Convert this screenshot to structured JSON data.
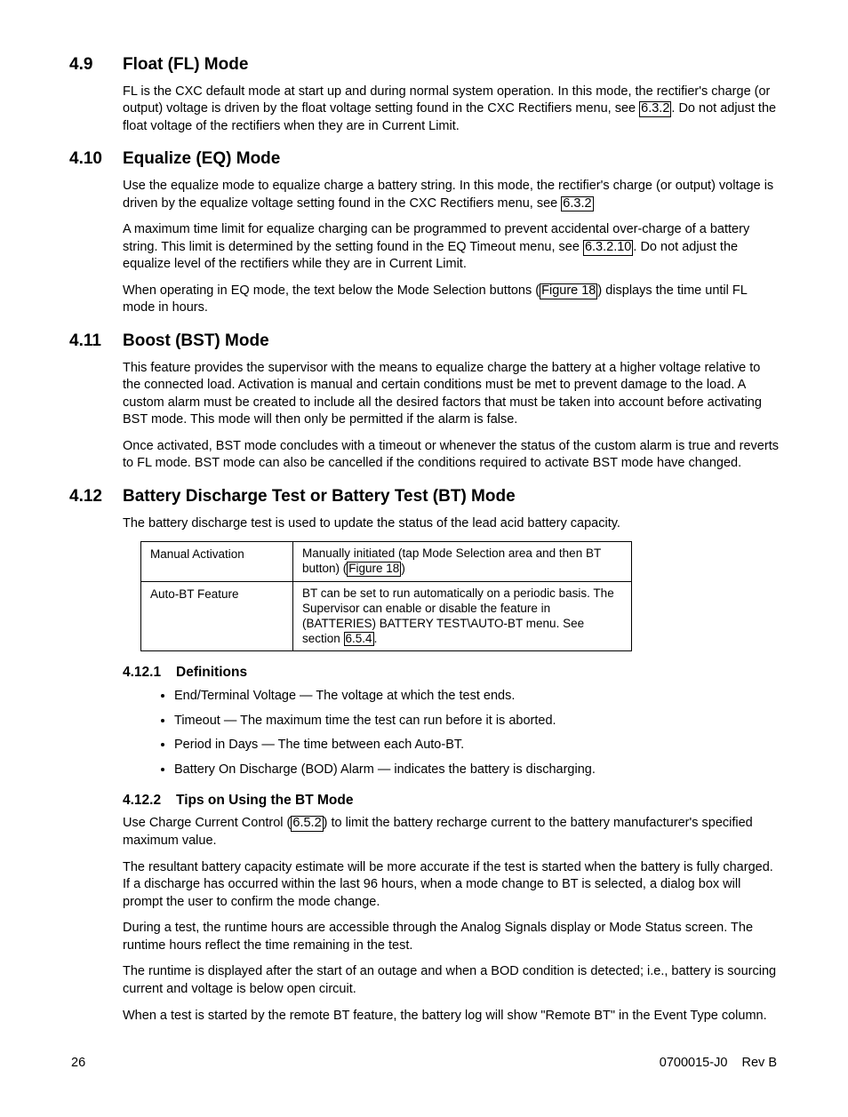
{
  "sections": {
    "s49": {
      "num": "4.9",
      "title": "Float (FL) Mode",
      "p1a": "FL is the CXC default mode at start up and during normal system operation. In this mode, the rectifier's charge (or output) voltage is driven by the float voltage setting found in the CXC Rectifiers menu, see ",
      "ref1": "6.3.2",
      "p1b": ". Do not adjust the float voltage of the rectifiers when they are in Current Limit."
    },
    "s410": {
      "num": "4.10",
      "title": "Equalize (EQ) Mode",
      "p1a": "Use the equalize mode to equalize charge a battery string. In this mode, the rectifier's charge (or output) voltage is driven by the equalize voltage setting found in the CXC Rectifiers menu, see ",
      "ref1": "6.3.2",
      "p2a": "A maximum time limit for equalize charging can be programmed to prevent accidental over-charge of a battery string. This limit is determined by the setting found in the EQ Timeout menu, see ",
      "ref2": "6.3.2.10",
      "p2b": ". Do not adjust the equalize level of the rectifiers while they are in Current Limit.",
      "p3a": "When operating in EQ mode, the text below the Mode Selection buttons (",
      "ref3": "Figure 18",
      "p3b": ") displays the time until FL mode in hours."
    },
    "s411": {
      "num": "4.11",
      "title": "Boost (BST) Mode",
      "p1": "This feature provides the supervisor with the means to equalize charge the battery at a higher voltage relative to the connected load. Activation is manual and certain conditions must be met to prevent damage to the load. A custom alarm must be created to include all the desired factors that must be taken into account before activating BST mode. This mode will then only be permitted if the alarm is false.",
      "p2": "Once activated, BST mode concludes with a timeout or whenever the status of the custom alarm is true and reverts to FL mode. BST mode can also be cancelled if the conditions required to activate BST mode have changed."
    },
    "s412": {
      "num": "4.12",
      "title": "Battery Discharge Test or Battery Test (BT) Mode",
      "p1": "The battery discharge test is used to update the status of the lead acid battery capacity.",
      "table": {
        "r1label": "Manual Activation",
        "r1a": "Manually initiated (tap Mode Selection area and then BT button) (",
        "r1ref": "Figure 18",
        "r1b": ")",
        "r2label": "Auto-BT Feature",
        "r2a": "BT can be set to run automatically on a periodic basis. The Supervisor can enable or disable the feature in (BATTERIES) BATTERY TEST\\AUTO-BT menu. See section ",
        "r2ref": "6.5.4",
        "r2b": "."
      }
    },
    "s4121": {
      "num": "4.12.1",
      "title": "Definitions",
      "d1": "End/Terminal Voltage — The voltage at which the test ends.",
      "d2": "Timeout — The maximum time the test can run before it is aborted.",
      "d3": "Period in Days — The time between each Auto-BT.",
      "d4": "Battery On Discharge (BOD) Alarm — indicates the battery is discharging."
    },
    "s4122": {
      "num": "4.12.2",
      "title": "Tips on Using the BT Mode",
      "p1a": "Use Charge Current Control (",
      "ref1": "6.5.2",
      "p1b": ") to limit the battery recharge current to the battery manufacturer's specified maximum value.",
      "p2": "The resultant battery capacity estimate will be more accurate if the test is started when the battery is fully charged. If a discharge has occurred within the last 96 hours, when a mode change to BT is selected, a dialog box will prompt the user to confirm the mode change.",
      "p3": "During a test, the runtime hours are accessible through the Analog Signals display or Mode Status screen. The runtime hours reflect the time remaining in the test.",
      "p4": "The runtime is displayed after the start of an outage and when a BOD condition is detected; i.e., battery is sourcing current and voltage is below open circuit.",
      "p5": "When a test is started by the remote BT feature, the battery log will show \"Remote BT\" in the Event Type column."
    }
  },
  "footer": {
    "page": "26",
    "docref": "0700015-J0    Rev B"
  }
}
